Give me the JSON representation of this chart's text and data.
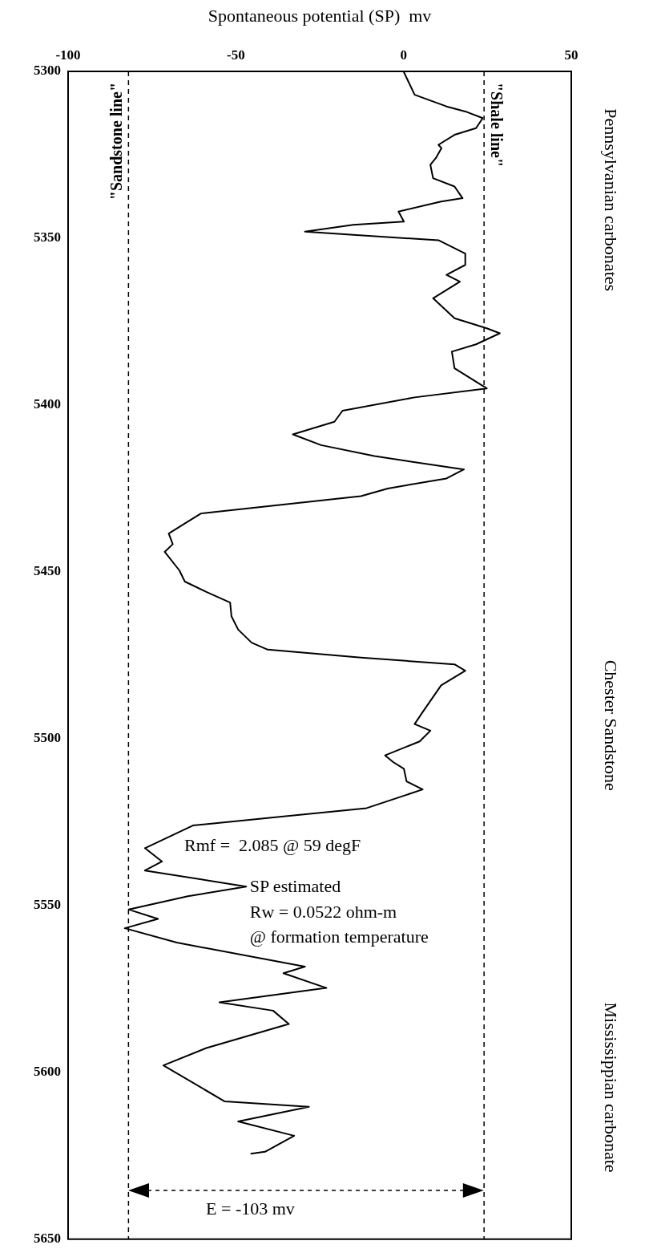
{
  "chart_data": {
    "type": "line",
    "xlabel": "Spontaneous potential (SP)  mv",
    "xlim": [
      -100,
      50
    ],
    "xticks": [
      -100,
      -50,
      0,
      50
    ],
    "ylim": [
      5650,
      5300
    ],
    "yticks": [
      5300,
      5350,
      5400,
      5450,
      5500,
      5550,
      5600,
      5650
    ],
    "grid": false,
    "legend": false,
    "marker": "none",
    "line_style": "solid",
    "series": [
      {
        "color": "#000000",
        "x": [
          0,
          3.3,
          12.8,
          18.4,
          23.6,
          21.6,
          15.2,
          10.4,
          11.3,
          9.6,
          8.0,
          8.8,
          15.2,
          17.6,
          11.2,
          -1.5,
          0.1,
          -15,
          -29.4,
          -15,
          10.4,
          18.4,
          18.4,
          12.8,
          16.8,
          8.8,
          15.2,
          24.8,
          28.7,
          21.6,
          14.4,
          15.2,
          24.8,
          3.3,
          -18.2,
          -20.6,
          -33,
          -24.6,
          -8.7,
          18,
          12.8,
          -4.7,
          -12.7,
          -60.4,
          -66,
          -70,
          -68.8,
          -71.2,
          -66.8,
          -65.2,
          -58.8,
          -51.7,
          -51.3,
          -49.3,
          -45.3,
          -40.5,
          -12.7,
          15.2,
          18.4,
          11.2,
          5.7,
          3.3,
          8,
          4.8,
          -5.5,
          -3.1,
          0.1,
          0.9,
          5.7,
          -11,
          -62.8,
          -77.1,
          -72,
          -77.1,
          -46.9,
          -64.3,
          -81.9,
          -73.2,
          -83.1,
          -67.6,
          -29.4,
          -35.8,
          -23,
          -54.9,
          -38.9,
          -34.2,
          -58.8,
          -71.6,
          -53.3,
          -28.2,
          -49.3,
          -32.6,
          -41.3,
          -45.6
        ],
        "values": [
          5300,
          5307,
          5310.5,
          5312,
          5314,
          5317,
          5319,
          5322,
          5323,
          5326,
          5328,
          5332,
          5334.5,
          5338,
          5339,
          5342,
          5345,
          5346,
          5348,
          5349,
          5350.6,
          5354.6,
          5358,
          5361,
          5363,
          5368,
          5374,
          5377,
          5378.5,
          5381.8,
          5384,
          5389,
          5395,
          5397.7,
          5401.7,
          5405,
          5408.8,
          5412,
          5415.3,
          5419.3,
          5422,
          5425,
          5427.3,
          5432.5,
          5436,
          5438.5,
          5441.7,
          5444,
          5449.6,
          5452.9,
          5456,
          5459.2,
          5463.3,
          5467.3,
          5471.2,
          5473.3,
          5475.7,
          5477.7,
          5479.6,
          5484,
          5492,
          5495.6,
          5497.6,
          5500.8,
          5505,
          5507,
          5509,
          5512.8,
          5515.2,
          5520.8,
          5526,
          5532.8,
          5536.8,
          5539.5,
          5544.3,
          5547.2,
          5551.2,
          5554,
          5556.8,
          5561.1,
          5568.3,
          5570.3,
          5574.7,
          5579,
          5581.5,
          5585.5,
          5592.7,
          5597.9,
          5608.7,
          5610.3,
          5614.7,
          5619,
          5623.8,
          5624.4
        ]
      }
    ],
    "ref_lines": [
      {
        "axis": "x",
        "value": -82,
        "label": "\"Sandstone line\"",
        "color": "#000000",
        "line_style": "dashed"
      },
      {
        "axis": "x",
        "value": 24,
        "label": "\"Shale line\"",
        "color": "#000000",
        "line_style": "dashed"
      }
    ],
    "annotations": [
      "Rmf =  2.085 @ 59 degF",
      "SP estimated",
      "Rw = 0.0522 ohm-m",
      "@ formation temperature",
      "E = -103 mv",
      "Pennsylvanian carbonates",
      "Chester Sandstone",
      "Mississippian carbonate"
    ]
  }
}
